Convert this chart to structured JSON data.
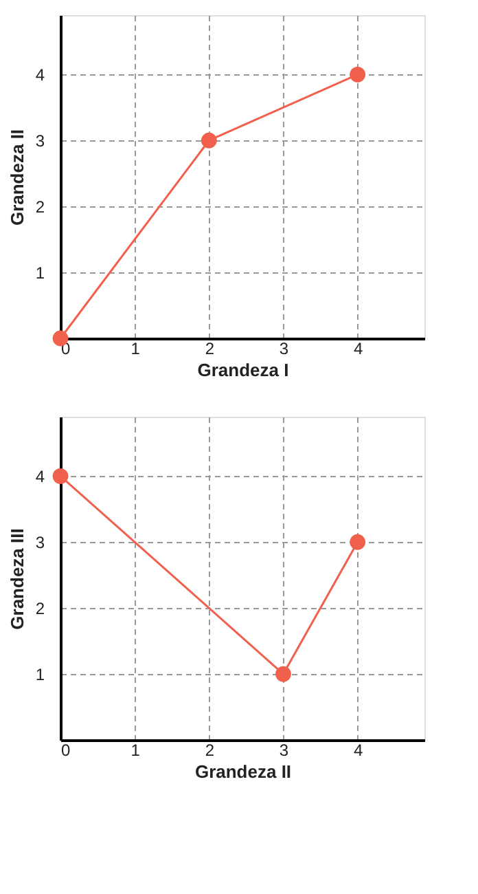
{
  "chart_data": [
    {
      "type": "line",
      "xlabel": "Grandeza I",
      "ylabel": "Grandeza II",
      "x": [
        0,
        2,
        4
      ],
      "series": [
        {
          "color": "#f0604d",
          "values": [
            0,
            3,
            4
          ]
        }
      ],
      "xlim": [
        0,
        4.9
      ],
      "ylim": [
        0,
        4.9
      ],
      "xticks": [
        0,
        1,
        2,
        3,
        4
      ],
      "yticks": [
        {
          "value": 0,
          "label": null
        },
        1,
        2,
        3,
        4
      ],
      "grid": true,
      "marker": "circle",
      "line_style": "solid"
    },
    {
      "type": "line",
      "xlabel": "Grandeza II",
      "ylabel": "Grandeza III",
      "x": [
        0,
        3,
        4
      ],
      "series": [
        {
          "color": "#f0604d",
          "values": [
            4,
            1,
            3
          ]
        }
      ],
      "xlim": [
        0,
        4.9
      ],
      "ylim": [
        0,
        4.9
      ],
      "xticks": [
        0,
        1,
        2,
        3,
        4
      ],
      "yticks": [
        {
          "value": 0,
          "label": null
        },
        1,
        2,
        3,
        4
      ],
      "grid": true,
      "marker": "circle",
      "line_style": "solid"
    }
  ]
}
